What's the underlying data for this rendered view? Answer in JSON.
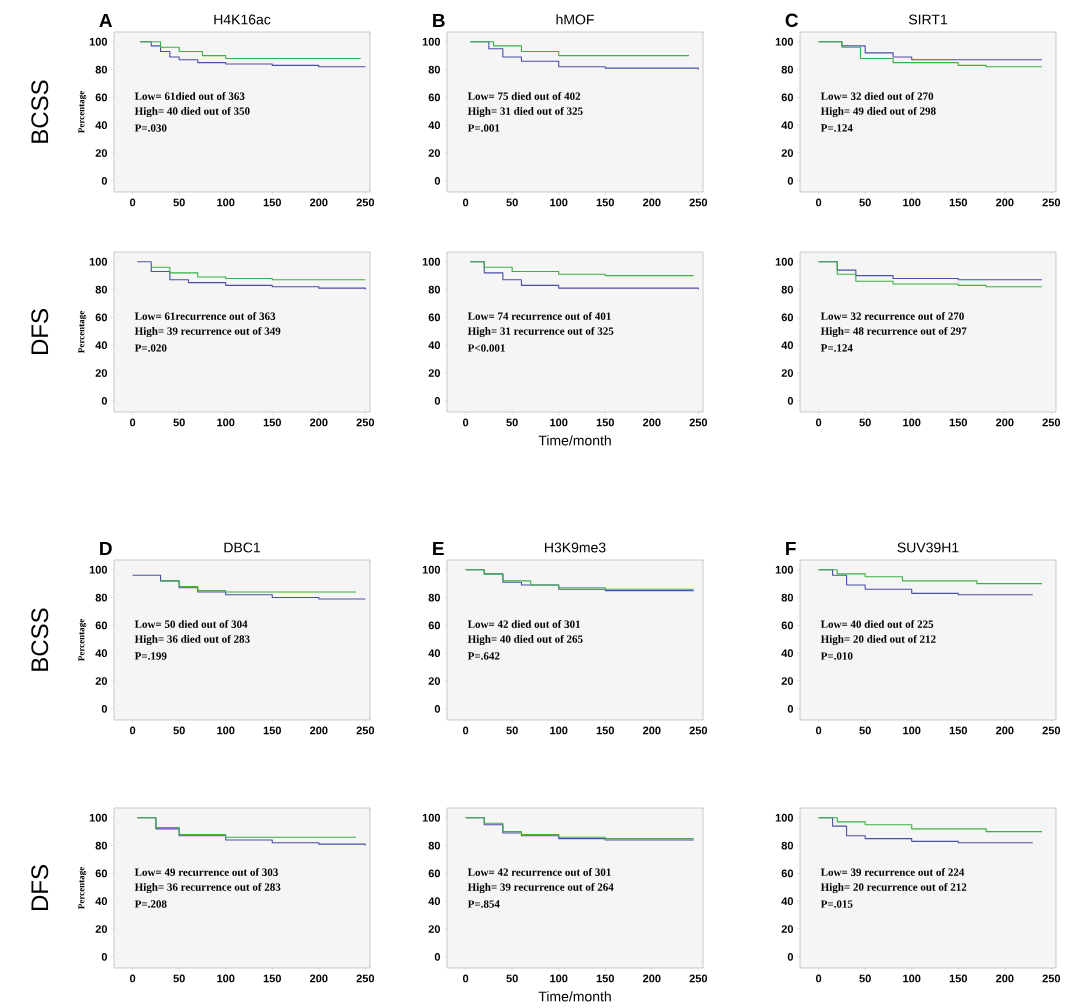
{
  "chart_data": [
    {
      "type": "step",
      "title": "H4K16ac",
      "ylabel": "Percentage",
      "xlim": [
        -20,
        255
      ],
      "ylim": [
        -8,
        107
      ],
      "xticks": [
        0,
        50,
        100,
        150,
        200,
        250
      ],
      "yticks": [
        0,
        20,
        40,
        60,
        80,
        100
      ],
      "marker": "none",
      "annotations": [
        "A",
        "BCSS",
        "Low= 61died out of 363",
        "High= 40 died out of 350",
        "P=.030"
      ],
      "series": [
        {
          "color": "#4b4fa8",
          "x": [
            8,
            20,
            30,
            40,
            50,
            70,
            100,
            150,
            200,
            250
          ],
          "values": [
            100,
            97,
            93,
            89,
            87,
            85,
            84,
            83,
            82,
            82
          ]
        },
        {
          "color": "#3cb043",
          "x": [
            8,
            30,
            50,
            75,
            100,
            150,
            245
          ],
          "values": [
            100,
            96,
            93,
            90,
            88,
            88,
            88
          ]
        }
      ]
    },
    {
      "type": "step",
      "title": "hMOF",
      "xlim": [
        -20,
        255
      ],
      "ylim": [
        -8,
        107
      ],
      "xticks": [
        0,
        50,
        100,
        150,
        200,
        250
      ],
      "yticks": [
        0,
        20,
        40,
        60,
        80,
        100
      ],
      "marker": "none",
      "annotations": [
        "B",
        "Low= 75 died out of 402",
        "High= 31 died out of 325",
        "P=.001"
      ],
      "series": [
        {
          "color": "#4b4fa8",
          "x": [
            5,
            25,
            40,
            60,
            100,
            150,
            200,
            250
          ],
          "values": [
            100,
            95,
            89,
            86,
            82,
            81,
            81,
            80
          ]
        },
        {
          "color": "#3cb043",
          "x": [
            5,
            30,
            60,
            100,
            150,
            240
          ],
          "values": [
            100,
            97,
            93,
            90,
            90,
            90
          ]
        }
      ]
    },
    {
      "type": "step",
      "title": "SIRT1",
      "xlim": [
        -20,
        255
      ],
      "ylim": [
        -8,
        107
      ],
      "xticks": [
        0,
        50,
        100,
        150,
        200,
        250
      ],
      "yticks": [
        0,
        20,
        40,
        60,
        80,
        100
      ],
      "marker": "none",
      "annotations": [
        "C",
        "Low= 32 died out of 270",
        "High= 49 died out of 298",
        "P=.124"
      ],
      "series": [
        {
          "color": "#4b4fa8",
          "x": [
            0,
            25,
            50,
            80,
            100,
            150,
            240
          ],
          "values": [
            100,
            97,
            92,
            89,
            87,
            87,
            87
          ]
        },
        {
          "color": "#3cb043",
          "x": [
            0,
            25,
            45,
            80,
            150,
            180,
            240
          ],
          "values": [
            100,
            96,
            88,
            85,
            83,
            82,
            82
          ]
        }
      ]
    },
    {
      "type": "step",
      "ylabel": "Percentage",
      "xlim": [
        -20,
        255
      ],
      "ylim": [
        -8,
        107
      ],
      "xticks": [
        0,
        50,
        100,
        150,
        200,
        250
      ],
      "yticks": [
        0,
        20,
        40,
        60,
        80,
        100
      ],
      "marker": "none",
      "annotations": [
        "DFS",
        "Low=  61recurrence out of 363",
        "High= 39 recurrence out of 349",
        "P=.020"
      ],
      "series": [
        {
          "color": "#4b4fa8",
          "x": [
            5,
            20,
            40,
            60,
            100,
            150,
            200,
            250
          ],
          "values": [
            100,
            93,
            87,
            85,
            83,
            82,
            81,
            80
          ]
        },
        {
          "color": "#3cb043",
          "x": [
            20,
            40,
            70,
            100,
            150,
            250
          ],
          "values": [
            96,
            92,
            89,
            88,
            87,
            87
          ]
        }
      ]
    },
    {
      "type": "step",
      "xlabel": "Time/month",
      "xlim": [
        -20,
        255
      ],
      "ylim": [
        -8,
        107
      ],
      "xticks": [
        0,
        50,
        100,
        150,
        200,
        250
      ],
      "yticks": [
        0,
        20,
        40,
        60,
        80,
        100
      ],
      "marker": "none",
      "annotations": [
        "Low= 74 recurrence out of 401",
        "High= 31 recurrence out of 325",
        "P<0.001"
      ],
      "series": [
        {
          "color": "#4b4fa8",
          "x": [
            5,
            20,
            40,
            60,
            100,
            150,
            250
          ],
          "values": [
            100,
            92,
            87,
            83,
            81,
            81,
            80
          ]
        },
        {
          "color": "#3cb043",
          "x": [
            5,
            20,
            50,
            100,
            150,
            245
          ],
          "values": [
            100,
            96,
            93,
            91,
            90,
            90
          ]
        }
      ]
    },
    {
      "type": "step",
      "xlim": [
        -20,
        255
      ],
      "ylim": [
        -8,
        107
      ],
      "xticks": [
        0,
        50,
        100,
        150,
        200,
        250
      ],
      "yticks": [
        0,
        20,
        40,
        60,
        80,
        100
      ],
      "marker": "none",
      "annotations": [
        "Low=  32 recurrence out of 270",
        "High= 48 recurrence out of 297",
        "P=.124"
      ],
      "series": [
        {
          "color": "#4b4fa8",
          "x": [
            0,
            20,
            40,
            80,
            150,
            240
          ],
          "values": [
            100,
            94,
            90,
            88,
            87,
            87
          ]
        },
        {
          "color": "#3cb043",
          "x": [
            0,
            20,
            40,
            80,
            150,
            180,
            240
          ],
          "values": [
            100,
            91,
            86,
            84,
            83,
            82,
            82
          ]
        }
      ]
    },
    {
      "type": "step",
      "title": "DBC1",
      "ylabel": "Percentage",
      "xlim": [
        -20,
        255
      ],
      "ylim": [
        -8,
        107
      ],
      "xticks": [
        0,
        50,
        100,
        150,
        200,
        250
      ],
      "yticks": [
        0,
        20,
        40,
        60,
        80,
        100
      ],
      "marker": "none",
      "annotations": [
        "D",
        "BCSS",
        "Low= 50 died out of 304",
        "High= 36 died out of 283",
        "P=.199"
      ],
      "series": [
        {
          "color": "#4b4fa8",
          "x": [
            0,
            30,
            50,
            70,
            100,
            150,
            200,
            250
          ],
          "values": [
            96,
            92,
            87,
            84,
            82,
            80,
            79,
            79
          ]
        },
        {
          "color": "#3cb043",
          "x": [
            30,
            50,
            70,
            100,
            150,
            240
          ],
          "values": [
            92,
            88,
            85,
            84,
            84,
            84
          ]
        }
      ]
    },
    {
      "type": "step",
      "title": "H3K9me3",
      "xlim": [
        -20,
        255
      ],
      "ylim": [
        -8,
        107
      ],
      "xticks": [
        0,
        50,
        100,
        150,
        200,
        250
      ],
      "yticks": [
        0,
        20,
        40,
        60,
        80,
        100
      ],
      "marker": "none",
      "annotations": [
        "E",
        "Low= 42  died out of 301",
        "High= 40 died out of  265",
        "P=.642"
      ],
      "series": [
        {
          "color": "#4b4fa8",
          "x": [
            0,
            20,
            40,
            60,
            100,
            150,
            245
          ],
          "values": [
            100,
            97,
            91,
            89,
            86,
            85,
            85
          ]
        },
        {
          "color": "#3cb043",
          "x": [
            0,
            20,
            40,
            70,
            100,
            150,
            245
          ],
          "values": [
            100,
            97,
            92,
            89,
            87,
            86,
            86
          ]
        }
      ]
    },
    {
      "type": "step",
      "title": "SUV39H1",
      "xlim": [
        -20,
        255
      ],
      "ylim": [
        -8,
        107
      ],
      "xticks": [
        0,
        50,
        100,
        150,
        200,
        250
      ],
      "yticks": [
        0,
        20,
        40,
        60,
        80,
        100
      ],
      "marker": "none",
      "annotations": [
        "F",
        "Low= 40 died out of 225",
        "High= 20 died out of 212",
        "P=.010"
      ],
      "series": [
        {
          "color": "#4b4fa8",
          "x": [
            0,
            15,
            30,
            50,
            100,
            150,
            230
          ],
          "values": [
            100,
            96,
            89,
            86,
            83,
            82,
            82
          ]
        },
        {
          "color": "#3cb043",
          "x": [
            0,
            20,
            50,
            90,
            150,
            170,
            240
          ],
          "values": [
            100,
            97,
            95,
            92,
            92,
            90,
            90
          ]
        }
      ]
    },
    {
      "type": "step",
      "ylabel": "Percentage",
      "xlim": [
        -20,
        255
      ],
      "ylim": [
        -8,
        107
      ],
      "xticks": [
        0,
        50,
        100,
        150,
        200,
        250
      ],
      "yticks": [
        0,
        20,
        40,
        60,
        80,
        100
      ],
      "marker": "none",
      "annotations": [
        "DFS",
        "Low= 49 recurrence out of 303",
        "High=  36 recurrence out of 283",
        "P=.208"
      ],
      "series": [
        {
          "color": "#4b4fa8",
          "x": [
            5,
            25,
            50,
            100,
            150,
            200,
            250
          ],
          "values": [
            100,
            92,
            87,
            84,
            82,
            81,
            80
          ]
        },
        {
          "color": "#3cb043",
          "x": [
            5,
            25,
            50,
            100,
            150,
            240
          ],
          "values": [
            100,
            93,
            88,
            86,
            86,
            86
          ]
        }
      ]
    },
    {
      "type": "step",
      "xlabel": "Time/month",
      "xlim": [
        -20,
        255
      ],
      "ylim": [
        -8,
        107
      ],
      "xticks": [
        0,
        50,
        100,
        150,
        200,
        250
      ],
      "yticks": [
        0,
        20,
        40,
        60,
        80,
        100
      ],
      "marker": "none",
      "annotations": [
        "Low= 42  recurrence out of  301",
        "High= 39  recurrence out of 264",
        "P=.854"
      ],
      "series": [
        {
          "color": "#4b4fa8",
          "x": [
            0,
            20,
            40,
            60,
            100,
            150,
            245
          ],
          "values": [
            100,
            95,
            89,
            87,
            85,
            84,
            84
          ]
        },
        {
          "color": "#3cb043",
          "x": [
            0,
            20,
            40,
            60,
            100,
            150,
            245
          ],
          "values": [
            100,
            96,
            90,
            88,
            86,
            85,
            85
          ]
        }
      ]
    },
    {
      "type": "step",
      "xlim": [
        -20,
        255
      ],
      "ylim": [
        -8,
        107
      ],
      "xticks": [
        0,
        50,
        100,
        150,
        200,
        250
      ],
      "yticks": [
        0,
        20,
        40,
        60,
        80,
        100
      ],
      "marker": "none",
      "annotations": [
        "Low= 39 recurrence out of 224",
        "High= 20  recurrence out of 212",
        "P=.015"
      ],
      "series": [
        {
          "color": "#4b4fa8",
          "x": [
            0,
            15,
            30,
            50,
            100,
            150,
            230
          ],
          "values": [
            100,
            94,
            87,
            85,
            83,
            82,
            82
          ]
        },
        {
          "color": "#3cb043",
          "x": [
            0,
            20,
            50,
            100,
            150,
            180,
            240
          ],
          "values": [
            100,
            97,
            95,
            92,
            92,
            90,
            90
          ]
        }
      ]
    }
  ]
}
